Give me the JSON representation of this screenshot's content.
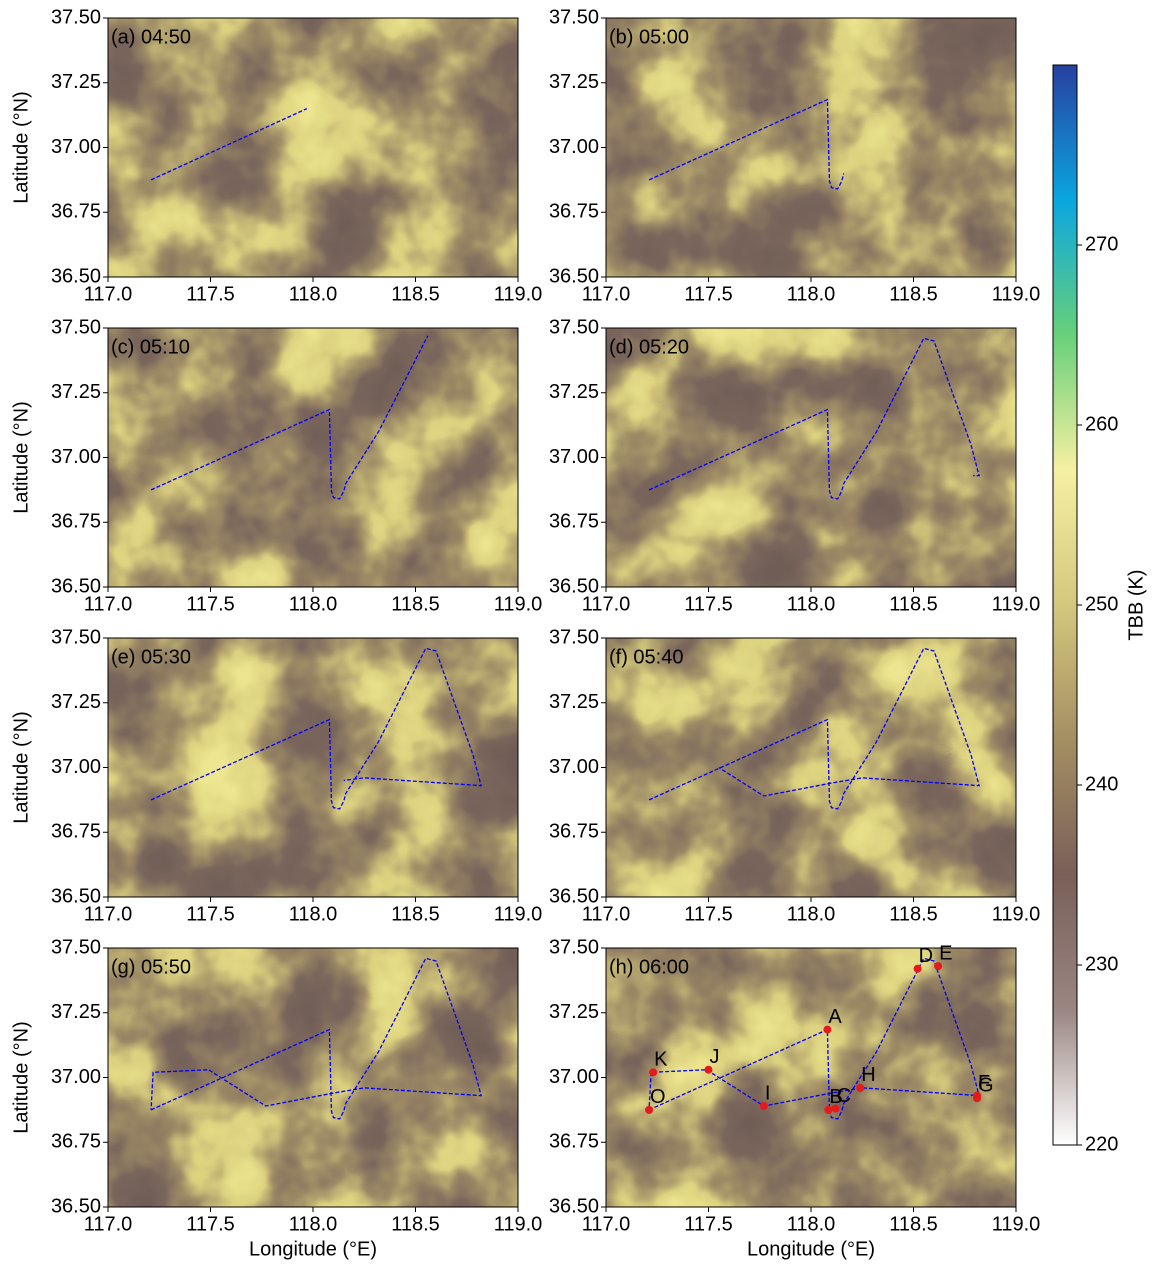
{
  "chart_data": [
    {
      "type": "line",
      "title": "(a) 04:50",
      "ylabel": "Latitude (°N)",
      "xlim": [
        117,
        119
      ],
      "ylim": [
        36.5,
        37.5
      ],
      "xticks": [
        {
          "value": 117,
          "label": "117.0"
        },
        {
          "value": 117.5,
          "label": "117.5"
        },
        {
          "value": 118,
          "label": "118.0"
        },
        {
          "value": 118.5,
          "label": "118.5"
        },
        {
          "value": 119,
          "label": "119.0"
        }
      ],
      "yticks": [
        {
          "value": 36.5,
          "label": "36.50"
        },
        {
          "value": 36.75,
          "label": "36.75"
        },
        {
          "value": 37,
          "label": "37.00"
        },
        {
          "value": 37.25,
          "label": "37.25"
        },
        {
          "value": 37.5,
          "label": "37.50"
        }
      ],
      "track": {
        "color": "#0000ff",
        "x": [
          117.21,
          117.97
        ],
        "y": [
          36.875,
          37.15
        ]
      }
    },
    {
      "type": "line",
      "title": "(b) 05:00",
      "xlim": [
        117,
        119
      ],
      "ylim": [
        36.5,
        37.5
      ],
      "xticks": [
        {
          "value": 117,
          "label": "117.0"
        },
        {
          "value": 117.5,
          "label": "117.5"
        },
        {
          "value": 118,
          "label": "118.0"
        },
        {
          "value": 118.5,
          "label": "118.5"
        },
        {
          "value": 119,
          "label": "119.0"
        }
      ],
      "yticks": [
        {
          "value": 36.5,
          "label": "36.50"
        },
        {
          "value": 36.75,
          "label": "36.75"
        },
        {
          "value": 37,
          "label": "37.00"
        },
        {
          "value": 37.25,
          "label": "37.25"
        },
        {
          "value": 37.5,
          "label": "37.50"
        }
      ],
      "track": {
        "color": "#0000ff",
        "x": [
          117.21,
          118.08,
          118.09,
          118.1,
          118.13,
          118.15,
          118.16
        ],
        "y": [
          36.875,
          37.185,
          36.87,
          36.845,
          36.84,
          36.87,
          36.9
        ]
      }
    },
    {
      "type": "line",
      "title": "(c) 05:10",
      "ylabel": "Latitude (°N)",
      "xlim": [
        117,
        119
      ],
      "ylim": [
        36.5,
        37.5
      ],
      "xticks": [
        {
          "value": 117,
          "label": "117.0"
        },
        {
          "value": 117.5,
          "label": "117.5"
        },
        {
          "value": 118,
          "label": "118.0"
        },
        {
          "value": 118.5,
          "label": "118.5"
        },
        {
          "value": 119,
          "label": "119.0"
        }
      ],
      "yticks": [
        {
          "value": 36.5,
          "label": "36.50"
        },
        {
          "value": 36.75,
          "label": "36.75"
        },
        {
          "value": 37,
          "label": "37.00"
        },
        {
          "value": 37.25,
          "label": "37.25"
        },
        {
          "value": 37.5,
          "label": "37.50"
        }
      ],
      "track": {
        "color": "#0000ff",
        "x": [
          117.21,
          118.08,
          118.09,
          118.1,
          118.13,
          118.15,
          118.16,
          118.32,
          118.56
        ],
        "y": [
          36.875,
          37.185,
          36.87,
          36.845,
          36.84,
          36.87,
          36.9,
          37.1,
          37.47
        ]
      }
    },
    {
      "type": "line",
      "title": "(d) 05:20",
      "xlim": [
        117,
        119
      ],
      "ylim": [
        36.5,
        37.5
      ],
      "xticks": [
        {
          "value": 117,
          "label": "117.0"
        },
        {
          "value": 117.5,
          "label": "117.5"
        },
        {
          "value": 118,
          "label": "118.0"
        },
        {
          "value": 118.5,
          "label": "118.5"
        },
        {
          "value": 119,
          "label": "119.0"
        }
      ],
      "yticks": [
        {
          "value": 36.5,
          "label": "36.50"
        },
        {
          "value": 36.75,
          "label": "36.75"
        },
        {
          "value": 37,
          "label": "37.00"
        },
        {
          "value": 37.25,
          "label": "37.25"
        },
        {
          "value": 37.5,
          "label": "37.50"
        }
      ],
      "track": {
        "color": "#0000ff",
        "x": [
          117.21,
          118.08,
          118.09,
          118.1,
          118.13,
          118.15,
          118.16,
          118.32,
          118.55,
          118.6,
          118.78,
          118.82,
          118.79
        ],
        "y": [
          36.875,
          37.185,
          36.87,
          36.845,
          36.84,
          36.87,
          36.9,
          37.1,
          37.46,
          37.45,
          37.05,
          36.93,
          36.93
        ]
      }
    },
    {
      "type": "line",
      "title": "(e) 05:30",
      "ylabel": "Latitude (°N)",
      "xlim": [
        117,
        119
      ],
      "ylim": [
        36.5,
        37.5
      ],
      "xticks": [
        {
          "value": 117,
          "label": "117.0"
        },
        {
          "value": 117.5,
          "label": "117.5"
        },
        {
          "value": 118,
          "label": "118.0"
        },
        {
          "value": 118.5,
          "label": "118.5"
        },
        {
          "value": 119,
          "label": "119.0"
        }
      ],
      "yticks": [
        {
          "value": 36.5,
          "label": "36.50"
        },
        {
          "value": 36.75,
          "label": "36.75"
        },
        {
          "value": 37,
          "label": "37.00"
        },
        {
          "value": 37.25,
          "label": "37.25"
        },
        {
          "value": 37.5,
          "label": "37.50"
        }
      ],
      "track": {
        "color": "#0000ff",
        "x": [
          117.21,
          118.08,
          118.09,
          118.1,
          118.13,
          118.15,
          118.16,
          118.32,
          118.55,
          118.6,
          118.78,
          118.82,
          118.25,
          118.15
        ],
        "y": [
          36.875,
          37.185,
          36.87,
          36.845,
          36.84,
          36.87,
          36.9,
          37.1,
          37.46,
          37.45,
          37.05,
          36.93,
          36.96,
          36.95
        ]
      }
    },
    {
      "type": "line",
      "title": "(f) 05:40",
      "xlim": [
        117,
        119
      ],
      "ylim": [
        36.5,
        37.5
      ],
      "xticks": [
        {
          "value": 117,
          "label": "117.0"
        },
        {
          "value": 117.5,
          "label": "117.5"
        },
        {
          "value": 118,
          "label": "118.0"
        },
        {
          "value": 118.5,
          "label": "118.5"
        },
        {
          "value": 119,
          "label": "119.0"
        }
      ],
      "yticks": [
        {
          "value": 36.5,
          "label": "36.50"
        },
        {
          "value": 36.75,
          "label": "36.75"
        },
        {
          "value": 37,
          "label": "37.00"
        },
        {
          "value": 37.25,
          "label": "37.25"
        },
        {
          "value": 37.5,
          "label": "37.50"
        }
      ],
      "track": {
        "color": "#0000ff",
        "x": [
          117.21,
          118.08,
          118.09,
          118.1,
          118.13,
          118.15,
          118.16,
          118.32,
          118.55,
          118.6,
          118.78,
          118.82,
          118.25,
          118.1,
          117.77,
          117.55
        ],
        "y": [
          36.875,
          37.185,
          36.87,
          36.845,
          36.84,
          36.87,
          36.9,
          37.1,
          37.46,
          37.45,
          37.05,
          36.93,
          36.96,
          36.94,
          36.89,
          37.0
        ]
      }
    },
    {
      "type": "line",
      "title": "(g) 05:50",
      "ylabel": "Latitude (°N)",
      "xlabel": "Longitude (°E)",
      "xlim": [
        117,
        119
      ],
      "ylim": [
        36.5,
        37.5
      ],
      "xticks": [
        {
          "value": 117,
          "label": "117.0"
        },
        {
          "value": 117.5,
          "label": "117.5"
        },
        {
          "value": 118,
          "label": "118.0"
        },
        {
          "value": 118.5,
          "label": "118.5"
        },
        {
          "value": 119,
          "label": "119.0"
        }
      ],
      "yticks": [
        {
          "value": 36.5,
          "label": "36.50"
        },
        {
          "value": 36.75,
          "label": "36.75"
        },
        {
          "value": 37,
          "label": "37.00"
        },
        {
          "value": 37.25,
          "label": "37.25"
        },
        {
          "value": 37.5,
          "label": "37.50"
        }
      ],
      "track": {
        "color": "#0000ff",
        "x": [
          117.21,
          118.08,
          118.09,
          118.1,
          118.13,
          118.15,
          118.16,
          118.32,
          118.55,
          118.6,
          118.78,
          118.82,
          118.25,
          118.1,
          117.77,
          117.49,
          117.22,
          117.21
        ],
        "y": [
          36.875,
          37.185,
          36.87,
          36.845,
          36.84,
          36.87,
          36.9,
          37.1,
          37.46,
          37.45,
          37.05,
          36.93,
          36.96,
          36.94,
          36.89,
          37.03,
          37.02,
          36.875
        ]
      }
    },
    {
      "type": "line",
      "title": "(h) 06:00",
      "xlabel": "Longitude (°E)",
      "xlim": [
        117,
        119
      ],
      "ylim": [
        36.5,
        37.5
      ],
      "xticks": [
        {
          "value": 117,
          "label": "117.0"
        },
        {
          "value": 117.5,
          "label": "117.5"
        },
        {
          "value": 118,
          "label": "118.0"
        },
        {
          "value": 118.5,
          "label": "118.5"
        },
        {
          "value": 119,
          "label": "119.0"
        }
      ],
      "yticks": [
        {
          "value": 36.5,
          "label": "36.50"
        },
        {
          "value": 36.75,
          "label": "36.75"
        },
        {
          "value": 37,
          "label": "37.00"
        },
        {
          "value": 37.25,
          "label": "37.25"
        },
        {
          "value": 37.5,
          "label": "37.50"
        }
      ],
      "track": {
        "color": "#0000ff",
        "x": [
          117.21,
          118.08,
          118.09,
          118.1,
          118.13,
          118.15,
          118.16,
          118.32,
          118.55,
          118.6,
          118.78,
          118.82,
          118.25,
          118.1,
          117.77,
          117.49,
          117.22,
          117.21
        ],
        "y": [
          36.875,
          37.185,
          36.87,
          36.845,
          36.84,
          36.87,
          36.9,
          37.1,
          37.46,
          37.45,
          37.05,
          36.93,
          36.96,
          36.94,
          36.89,
          37.03,
          37.02,
          36.875
        ]
      },
      "points": {
        "color": "#e41a1c",
        "labels": [
          "A",
          "B",
          "C",
          "D",
          "E",
          "F",
          "G",
          "H",
          "I",
          "J",
          "K",
          "O"
        ],
        "x": [
          118.08,
          118.085,
          118.12,
          118.52,
          118.62,
          118.81,
          118.81,
          118.24,
          117.77,
          117.5,
          117.23,
          117.21
        ],
        "y": [
          37.185,
          36.875,
          36.88,
          37.42,
          37.43,
          36.93,
          36.92,
          36.96,
          36.89,
          37.03,
          37.02,
          36.875
        ]
      }
    },
    {
      "type": "colorbar",
      "label": "TBB (K)",
      "lim": [
        220,
        280
      ],
      "ticks": [
        220,
        230,
        240,
        250,
        260,
        270
      ],
      "colors": [
        "#ffffff",
        "#9a8682",
        "#7a5f58",
        "#a48e62",
        "#d4c77e",
        "#f6f0a2",
        "#68d07a",
        "#0aa6e0",
        "#2840a0"
      ]
    }
  ]
}
